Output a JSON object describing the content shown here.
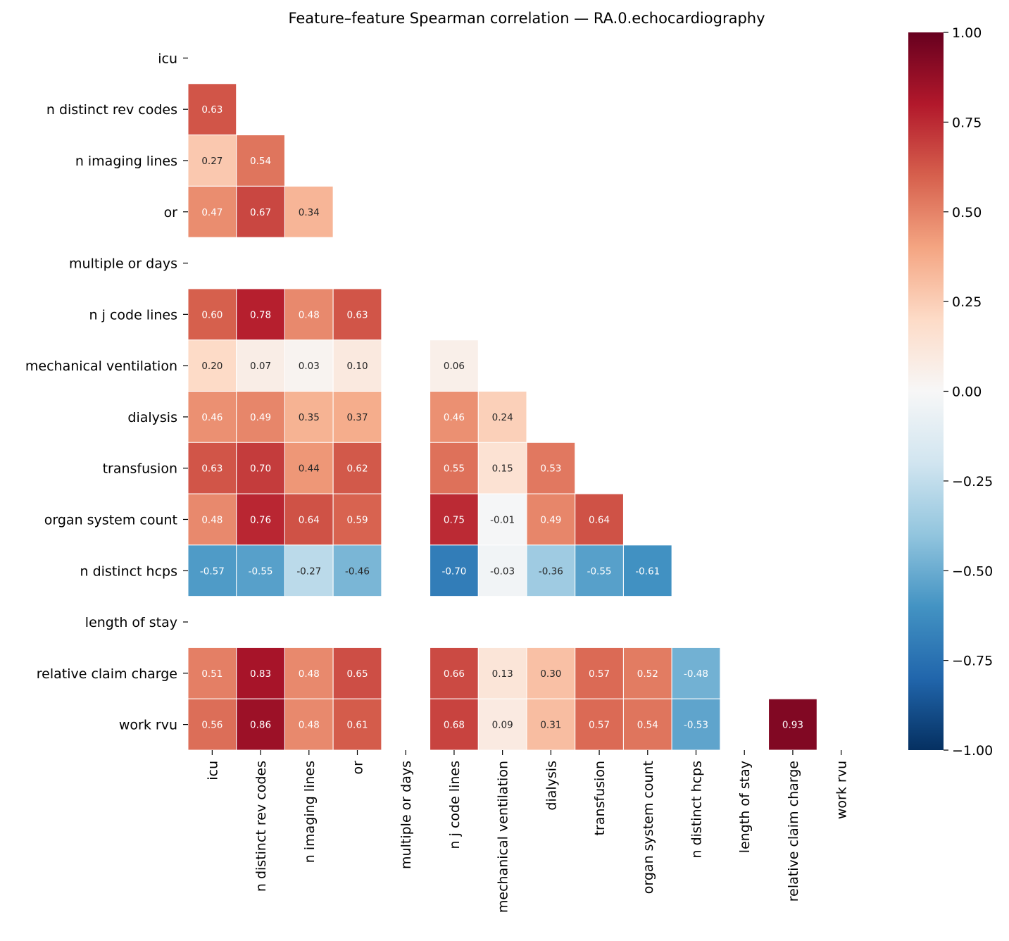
{
  "chart_data": {
    "type": "heatmap",
    "title": "Feature–feature Spearman correlation — RA.0.echocardiography",
    "colormap": "RdBu_r",
    "vlim": [
      -1,
      1
    ],
    "mask": "upper triangle incl. diagonal",
    "labels": [
      "icu",
      "n distinct rev codes",
      "n imaging lines",
      "or",
      "multiple or days",
      "n j code lines",
      "mechanical ventilation",
      "dialysis",
      "transfusion",
      "organ system count",
      "n distinct hcps",
      "length of stay",
      "relative claim charge",
      "work rvu"
    ],
    "values": [
      [],
      [
        0.63
      ],
      [
        0.27,
        0.54
      ],
      [
        0.47,
        0.67,
        0.34
      ],
      [
        null,
        null,
        null,
        null
      ],
      [
        0.6,
        0.78,
        0.48,
        0.63,
        null
      ],
      [
        0.2,
        0.07,
        0.03,
        0.1,
        null,
        0.06
      ],
      [
        0.46,
        0.49,
        0.35,
        0.37,
        null,
        0.46,
        0.24
      ],
      [
        0.63,
        0.7,
        0.44,
        0.62,
        null,
        0.55,
        0.15,
        0.53
      ],
      [
        0.48,
        0.76,
        0.64,
        0.59,
        null,
        0.75,
        -0.01,
        0.49,
        0.64
      ],
      [
        -0.57,
        -0.55,
        -0.27,
        -0.46,
        null,
        -0.7,
        -0.03,
        -0.36,
        -0.55,
        -0.61
      ],
      [
        null,
        null,
        null,
        null,
        null,
        null,
        null,
        null,
        null,
        null,
        null
      ],
      [
        0.51,
        0.83,
        0.48,
        0.65,
        null,
        0.66,
        0.13,
        0.3,
        0.57,
        0.52,
        -0.48,
        null
      ],
      [
        0.56,
        0.86,
        0.48,
        0.61,
        null,
        0.68,
        0.09,
        0.31,
        0.57,
        0.54,
        -0.53,
        null,
        0.93
      ]
    ],
    "colorbar_ticks": [
      "1.00",
      "0.75",
      "0.50",
      "0.25",
      "0.00",
      "−0.25",
      "−0.50",
      "−0.75",
      "−1.00"
    ],
    "colorbar_tick_values": [
      1,
      0.75,
      0.5,
      0.25,
      0,
      -0.25,
      -0.5,
      -0.75,
      -1
    ]
  }
}
